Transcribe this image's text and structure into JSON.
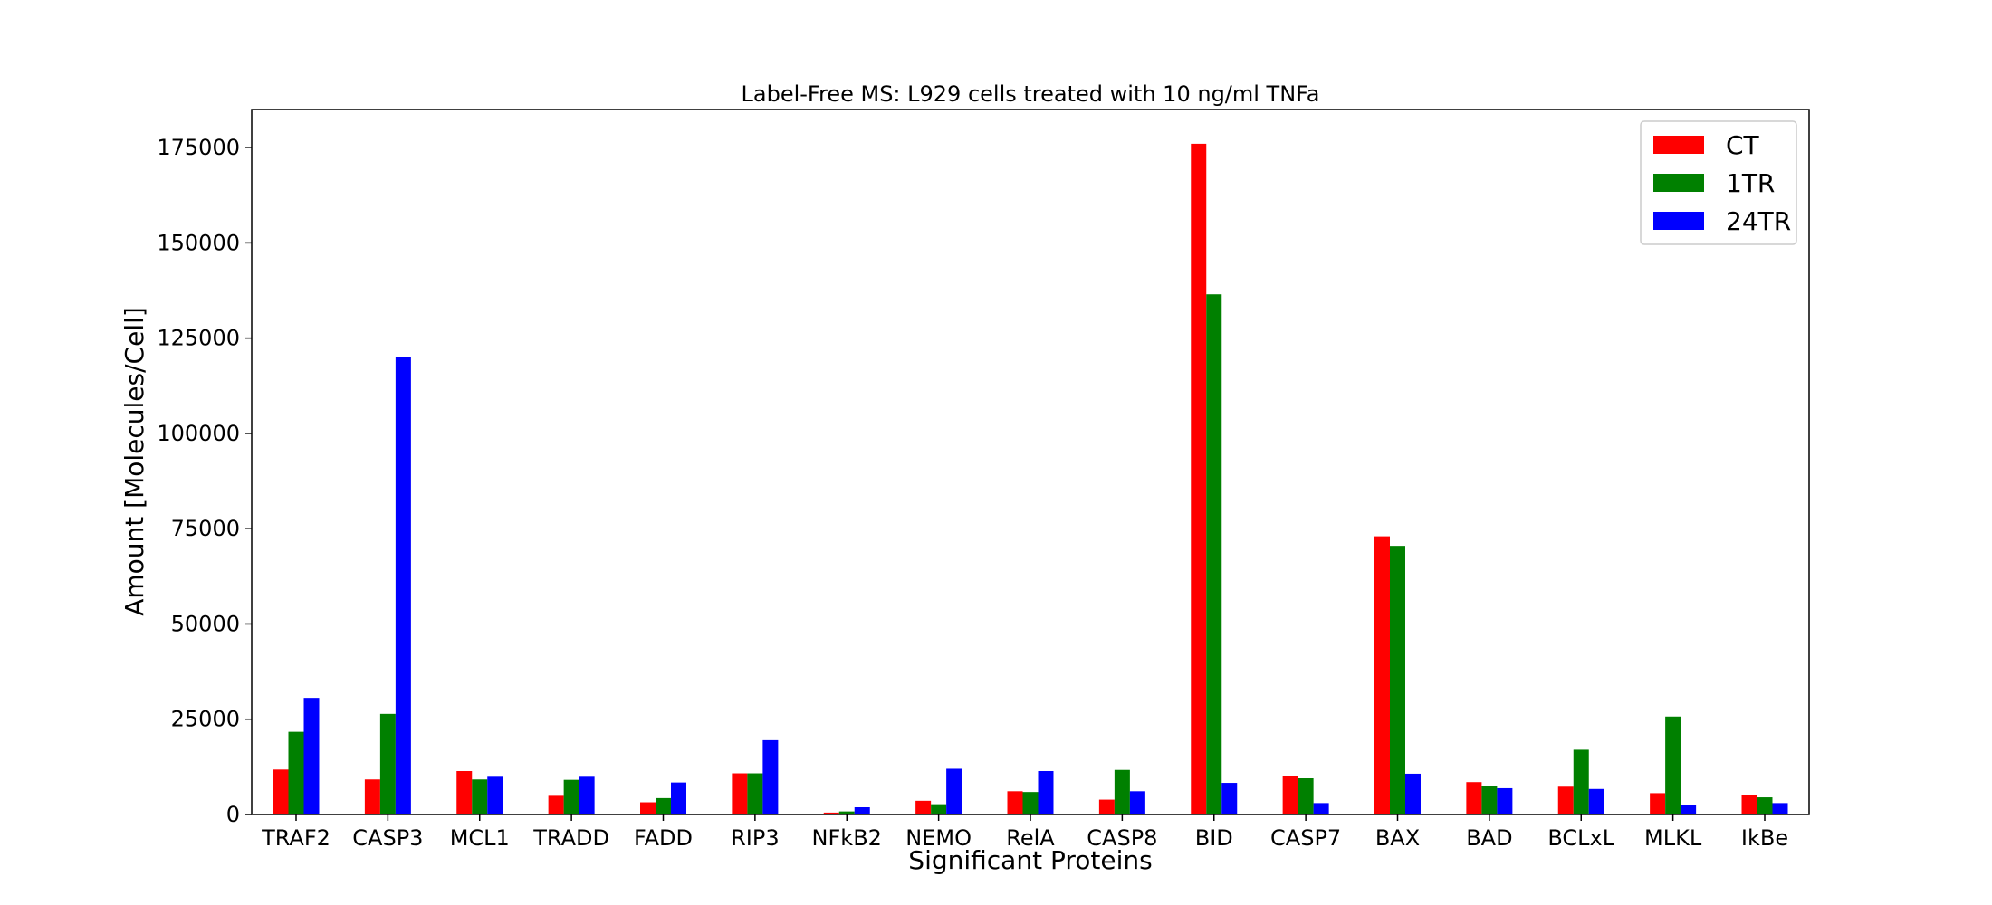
{
  "chart_data": {
    "type": "bar",
    "title": "Label-Free MS: L929 cells treated with 10 ng/ml TNFa",
    "xlabel": "Significant Proteins",
    "ylabel": "Amount [Molecules/Cell]",
    "ylim": [
      0,
      185000
    ],
    "yticks": [
      0,
      25000,
      50000,
      75000,
      100000,
      125000,
      150000,
      175000
    ],
    "ytick_labels": [
      "0",
      "25000",
      "50000",
      "75000",
      "100000",
      "125000",
      "150000",
      "175000"
    ],
    "grid": false,
    "legend_position": "top-right",
    "categories": [
      "TRAF2",
      "CASP3",
      "MCL1",
      "TRADD",
      "FADD",
      "RIP3",
      "NFkB2",
      "NEMO",
      "RelA",
      "CASP8",
      "BID",
      "CASP7",
      "BAX",
      "BAD",
      "BCLxL",
      "MLKL",
      "IkBe"
    ],
    "series": [
      {
        "name": "CT",
        "color": "#ff0000",
        "values": [
          11800,
          9200,
          11400,
          4900,
          3200,
          10800,
          500,
          3600,
          6100,
          3900,
          176000,
          10000,
          73000,
          8500,
          7300,
          5600,
          5000
        ]
      },
      {
        "name": "1TR",
        "color": "#008000",
        "values": [
          21700,
          26400,
          9200,
          9100,
          4300,
          10800,
          800,
          2700,
          5900,
          11700,
          136500,
          9500,
          70500,
          7400,
          17000,
          25700,
          4500
        ]
      },
      {
        "name": "24TR",
        "color": "#0000ff",
        "values": [
          30600,
          120000,
          9900,
          9900,
          8400,
          19500,
          1900,
          12000,
          11400,
          6100,
          8300,
          3000,
          10700,
          6900,
          6700,
          2400,
          3000
        ]
      }
    ]
  }
}
